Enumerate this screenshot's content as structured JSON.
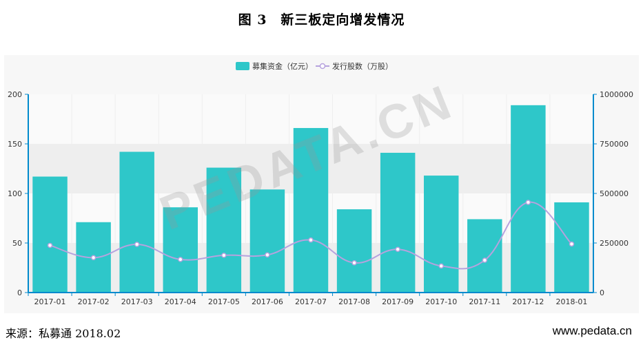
{
  "title": "图 3　新三板定向增发情况",
  "footer": {
    "source": "来源：私募通 2018.02",
    "website": "www.pedata.cn"
  },
  "watermark": "PEDATA.CN",
  "colors": {
    "bar": "#2ec7c9",
    "line": "#b6a2de",
    "axis": "#008acd",
    "band": "#eeeeee"
  },
  "chart_data": {
    "type": "bar",
    "categories": [
      "2017-01",
      "2017-02",
      "2017-03",
      "2017-04",
      "2017-05",
      "2017-06",
      "2017-07",
      "2017-08",
      "2017-09",
      "2017-10",
      "2017-11",
      "2017-12",
      "2018-01"
    ],
    "series": [
      {
        "name": "募集资金（亿元）",
        "type": "bar",
        "axis": "left",
        "values": [
          117,
          71,
          142,
          86,
          126,
          104,
          166,
          84,
          141,
          118,
          74,
          189,
          91
        ]
      },
      {
        "name": "发行股数（万股）",
        "type": "line",
        "axis": "right",
        "values": [
          238000,
          176000,
          243000,
          167000,
          188000,
          190000,
          265000,
          150000,
          218000,
          134000,
          163000,
          455000,
          245000
        ]
      }
    ],
    "y_left": {
      "ylim": [
        0,
        200
      ],
      "ticks": [
        "0",
        "50",
        "100",
        "150",
        "200"
      ]
    },
    "y_right": {
      "ylim": [
        0,
        1000000
      ],
      "ticks": [
        "0",
        "250000",
        "500000",
        "750000",
        "1000000"
      ]
    },
    "legend_position": "top-center",
    "grid": true
  }
}
